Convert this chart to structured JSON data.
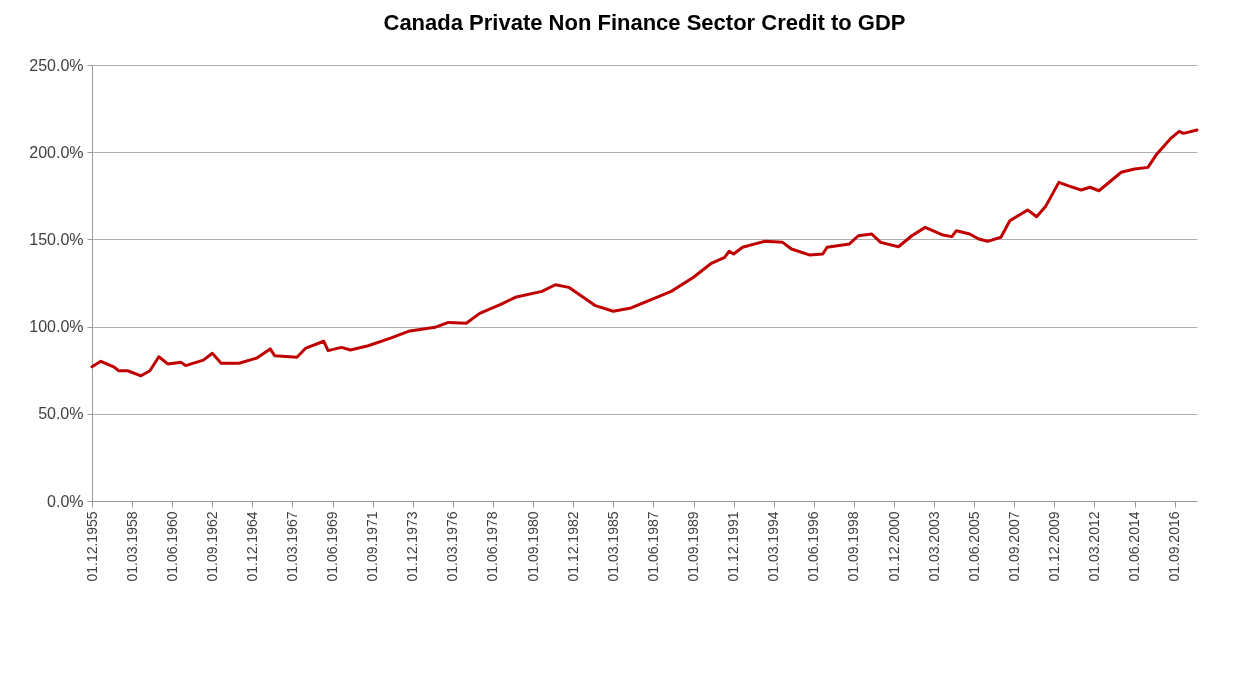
{
  "chart_data": {
    "type": "line",
    "title": "Canada Private Non Finance Sector Credit to GDP",
    "x": [
      "1955-12-01",
      "1956-06-01",
      "1957-03-01",
      "1957-06-01",
      "1957-12-01",
      "1958-09-01",
      "1959-03-01",
      "1959-09-01",
      "1960-03-01",
      "1960-12-01",
      "1961-03-01",
      "1962-03-01",
      "1962-09-01",
      "1963-03-01",
      "1964-03-01",
      "1965-03-01",
      "1965-12-01",
      "1966-03-01",
      "1967-06-01",
      "1967-12-01",
      "1968-12-01",
      "1969-03-01",
      "1969-12-01",
      "1970-06-01",
      "1971-06-01",
      "1972-09-01",
      "1973-09-01",
      "1975-03-01",
      "1975-12-01",
      "1976-12-01",
      "1977-09-01",
      "1978-12-01",
      "1979-09-01",
      "1981-03-01",
      "1981-12-01",
      "1982-09-01",
      "1984-03-01",
      "1985-03-01",
      "1986-03-01",
      "1987-09-01",
      "1988-06-01",
      "1989-09-01",
      "1990-09-01",
      "1991-06-01",
      "1991-09-01",
      "1991-12-01",
      "1992-06-01",
      "1993-09-01",
      "1994-09-01",
      "1995-03-01",
      "1996-03-01",
      "1996-12-01",
      "1997-03-01",
      "1998-06-01",
      "1998-12-01",
      "1999-09-01",
      "2000-03-01",
      "2001-03-01",
      "2001-12-01",
      "2002-09-01",
      "2003-09-01",
      "2004-03-01",
      "2004-06-01",
      "2005-03-01",
      "2005-09-01",
      "2006-03-01",
      "2006-12-01",
      "2007-06-01",
      "2008-06-01",
      "2008-12-01",
      "2009-06-01",
      "2010-03-01",
      "2010-09-01",
      "2011-06-01",
      "2011-12-01",
      "2012-06-01",
      "2013-09-01",
      "2014-06-01",
      "2015-03-01",
      "2015-09-01",
      "2016-06-01",
      "2016-12-01",
      "2017-03-01",
      "2017-12-01"
    ],
    "series": [
      {
        "color": "#c00000",
        "values": [
          77.0,
          80.1,
          76.7,
          74.7,
          74.7,
          71.8,
          74.7,
          82.7,
          78.6,
          79.5,
          77.6,
          80.8,
          84.7,
          79.0,
          79.0,
          82.0,
          87.2,
          83.3,
          82.4,
          87.7,
          91.6,
          86.2,
          88.1,
          86.6,
          89.0,
          93.4,
          97.3,
          99.6,
          102.4,
          101.9,
          107.6,
          113.0,
          116.8,
          120.2,
          124.0,
          122.5,
          112.0,
          108.8,
          110.7,
          117.1,
          120.2,
          128.3,
          136.3,
          139.7,
          143.2,
          141.6,
          145.5,
          148.9,
          148.3,
          144.5,
          141.1,
          141.6,
          145.5,
          147.4,
          152.1,
          153.1,
          148.3,
          145.8,
          152.1,
          156.9,
          152.5,
          151.6,
          155.0,
          153.1,
          150.2,
          148.9,
          151.2,
          160.7,
          166.9,
          163.0,
          168.8,
          182.7,
          180.8,
          178.3,
          179.9,
          177.9,
          188.5,
          190.4,
          191.3,
          199.0,
          207.6,
          212.0,
          210.8,
          212.7
        ]
      }
    ],
    "xlim": [
      "1955-12-01",
      "2017-12-01"
    ],
    "xticks": [
      {
        "value": "1955-12-01",
        "label": "01.12.1955"
      },
      {
        "value": "1958-03-01",
        "label": "01.03.1958"
      },
      {
        "value": "1960-06-01",
        "label": "01.06.1960"
      },
      {
        "value": "1962-09-01",
        "label": "01.09.1962"
      },
      {
        "value": "1964-12-01",
        "label": "01.12.1964"
      },
      {
        "value": "1967-03-01",
        "label": "01.03.1967"
      },
      {
        "value": "1969-06-01",
        "label": "01.06.1969"
      },
      {
        "value": "1971-09-01",
        "label": "01.09.1971"
      },
      {
        "value": "1973-12-01",
        "label": "01.12.1973"
      },
      {
        "value": "1976-03-01",
        "label": "01.03.1976"
      },
      {
        "value": "1978-06-01",
        "label": "01.06.1978"
      },
      {
        "value": "1980-09-01",
        "label": "01.09.1980"
      },
      {
        "value": "1982-12-01",
        "label": "01.12.1982"
      },
      {
        "value": "1985-03-01",
        "label": "01.03.1985"
      },
      {
        "value": "1987-06-01",
        "label": "01.06.1987"
      },
      {
        "value": "1989-09-01",
        "label": "01.09.1989"
      },
      {
        "value": "1991-12-01",
        "label": "01.12.1991"
      },
      {
        "value": "1994-03-01",
        "label": "01.03.1994"
      },
      {
        "value": "1996-06-01",
        "label": "01.06.1996"
      },
      {
        "value": "1998-09-01",
        "label": "01.09.1998"
      },
      {
        "value": "2000-12-01",
        "label": "01.12.2000"
      },
      {
        "value": "2003-03-01",
        "label": "01.03.2003"
      },
      {
        "value": "2005-06-01",
        "label": "01.06.2005"
      },
      {
        "value": "2007-09-01",
        "label": "01.09.2007"
      },
      {
        "value": "2009-12-01",
        "label": "01.12.2009"
      },
      {
        "value": "2012-03-01",
        "label": "01.03.2012"
      },
      {
        "value": "2014-06-01",
        "label": "01.06.2014"
      },
      {
        "value": "2016-09-01",
        "label": "01.09.2016"
      }
    ],
    "ylim": [
      0,
      250
    ],
    "yticks": [
      {
        "value": 0,
        "label": "0.0%"
      },
      {
        "value": 50,
        "label": "50.0%"
      },
      {
        "value": 100,
        "label": "100.0%"
      },
      {
        "value": 150,
        "label": "150.0%"
      },
      {
        "value": 200,
        "label": "200.0%"
      },
      {
        "value": 250,
        "label": "250.0%"
      }
    ],
    "grid": "y",
    "line_style": "solid"
  }
}
